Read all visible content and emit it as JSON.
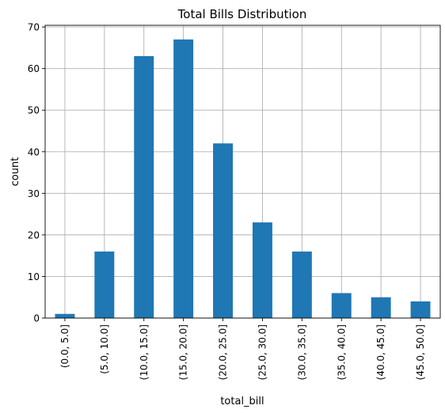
{
  "chart_data": {
    "type": "bar",
    "title": "Total Bills Distribution",
    "xlabel": "total_bill",
    "ylabel": "count",
    "categories": [
      "(0.0, 5.0]",
      "(5.0, 10.0]",
      "(10.0, 15.0]",
      "(15.0, 20.0]",
      "(20.0, 25.0]",
      "(25.0, 30.0]",
      "(30.0, 35.0]",
      "(35.0, 40.0]",
      "(40.0, 45.0]",
      "(45.0, 50.0]"
    ],
    "values": [
      1,
      16,
      63,
      67,
      42,
      23,
      16,
      6,
      5,
      4
    ],
    "ylim": [
      0,
      70.4
    ],
    "yticks": [
      0,
      10,
      20,
      30,
      40,
      50,
      60,
      70
    ],
    "grid": true,
    "legend": "none",
    "bar_color": "#1f77b4",
    "grid_color": "#b0b0b0"
  }
}
